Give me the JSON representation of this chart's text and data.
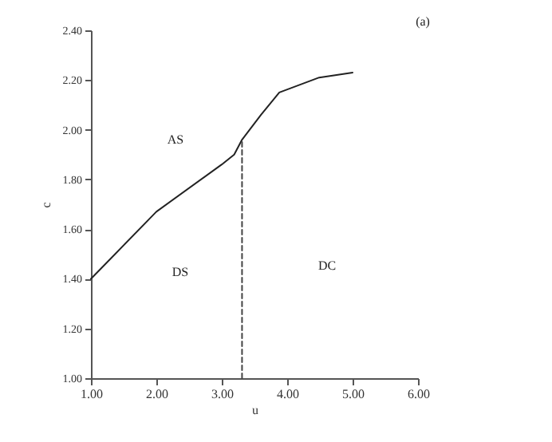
{
  "chart_data": {
    "type": "line",
    "xlabel": "u",
    "ylabel": "c",
    "xlim": [
      1,
      6
    ],
    "xticks": [
      {
        "value": 1,
        "label": "1.00"
      },
      {
        "value": 2,
        "label": "2.00"
      },
      {
        "value": 3,
        "label": "3.00"
      },
      {
        "value": 4,
        "label": "4.00"
      },
      {
        "value": 5,
        "label": "5.00"
      },
      {
        "value": 6,
        "label": "6.00"
      }
    ],
    "ylim": [
      1,
      2.4
    ],
    "yticks": [
      {
        "value": 1,
        "label": "1.00"
      },
      {
        "value": 1.2,
        "label": "1.20"
      },
      {
        "value": 1.4,
        "label": "1.40"
      },
      {
        "value": 1.6,
        "label": "1.60"
      },
      {
        "value": 1.8,
        "label": "1.80"
      },
      {
        "value": 2,
        "label": "2.00"
      },
      {
        "value": 2.2,
        "label": "2.20"
      },
      {
        "value": 2.4,
        "label": "2.40"
      }
    ],
    "grid": false,
    "marker": "none",
    "series": [
      {
        "color": "#222222",
        "x": [
          1.0,
          2.0,
          3.0,
          3.19,
          3.31,
          3.6,
          3.88,
          4.49,
          5.0
        ],
        "values": [
          1.4,
          1.67,
          1.86,
          1.9,
          1.96,
          2.06,
          2.15,
          2.21,
          2.23
        ],
        "line_style": "solid"
      },
      {
        "color": "#444444",
        "x": [
          3.31,
          3.31
        ],
        "values": [
          1.0,
          1.96
        ],
        "line_style": "dashed"
      }
    ],
    "annotations": [
      "AS",
      "DS",
      "DC",
      "(a)"
    ]
  }
}
